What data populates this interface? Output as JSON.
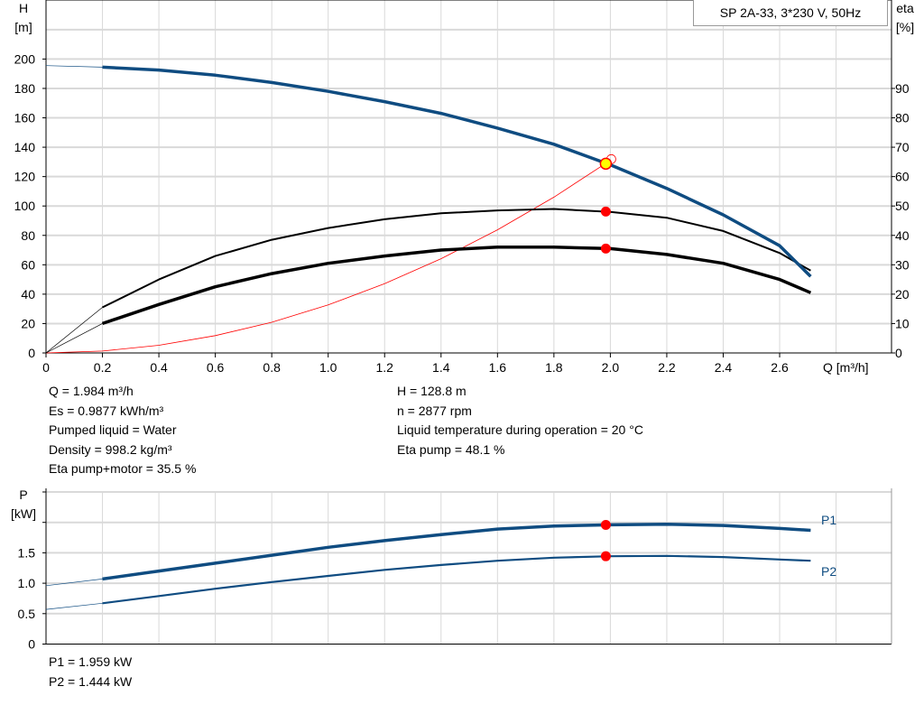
{
  "title": "SP 2A-33, 3*230 V, 50Hz",
  "colors": {
    "head": "#0f4c81",
    "eta": "#000000",
    "system": "#ff0000",
    "power": "#0f4c81",
    "duty_marker": "#ff0000",
    "duty_head_marker": "#ffff00",
    "grid": "#d9d9d9"
  },
  "duty_info": {
    "left": [
      "Q = 1.984 m³/h",
      "Es = 0.9877 kWh/m³",
      "Pumped liquid = Water",
      "Density = 998.2 kg/m³",
      "Eta pump+motor = 35.5 %"
    ],
    "right": [
      "H = 128.8 m",
      "n = 2877 rpm",
      "Liquid temperature during operation = 20 °C",
      "Eta pump = 48.1 %"
    ]
  },
  "power_info": [
    "P1 = 1.959 kW",
    "P2 = 1.444 kW"
  ],
  "chart_data": [
    {
      "type": "line",
      "xlabel": "Q [m³/h]",
      "ylabel": "H\n[m]",
      "y2label": "eta\n[%]",
      "xlim": [
        0,
        2.9
      ],
      "ylim": [
        0,
        240
      ],
      "y2lim": [
        0,
        120
      ],
      "xticks": [
        "0",
        "0.2",
        "0.4",
        "0.6",
        "0.8",
        "1.0",
        "1.2",
        "1.4",
        "1.6",
        "1.8",
        "2.0",
        "2.2",
        "2.4",
        "2.6"
      ],
      "yticks": [
        "0",
        "20",
        "40",
        "60",
        "80",
        "100",
        "120",
        "140",
        "160",
        "180",
        "200"
      ],
      "y2ticks": [
        "0",
        "10",
        "20",
        "30",
        "40",
        "50",
        "60",
        "70",
        "80",
        "90"
      ],
      "grid": true,
      "series": [
        {
          "id": "head",
          "axis": "left",
          "x": [
            0,
            0.2,
            0.4,
            0.6,
            0.8,
            1.0,
            1.2,
            1.4,
            1.6,
            1.8,
            2.0,
            2.2,
            2.4,
            2.6,
            2.71
          ],
          "values": [
            195.5,
            194.5,
            192.5,
            189,
            184,
            178,
            171,
            163,
            153,
            142,
            128,
            112,
            94,
            73,
            52
          ]
        },
        {
          "id": "eta-pump",
          "axis": "right",
          "x": [
            0,
            0.2,
            0.4,
            0.6,
            0.8,
            1.0,
            1.2,
            1.4,
            1.6,
            1.8,
            2.0,
            2.2,
            2.4,
            2.6,
            2.71
          ],
          "values": [
            0,
            15.5,
            25,
            33,
            38.5,
            42.5,
            45.5,
            47.5,
            48.5,
            49,
            48,
            46,
            41.5,
            34,
            28
          ]
        },
        {
          "id": "eta-pump-motor",
          "axis": "right",
          "x": [
            0,
            0.2,
            0.4,
            0.6,
            0.8,
            1.0,
            1.2,
            1.4,
            1.6,
            1.8,
            2.0,
            2.2,
            2.4,
            2.6,
            2.71
          ],
          "values": [
            0,
            10,
            16.5,
            22.5,
            27,
            30.5,
            33,
            35,
            36,
            36,
            35.5,
            33.5,
            30.5,
            25,
            20.5
          ]
        },
        {
          "id": "system",
          "axis": "left",
          "x": [
            0,
            0.2,
            0.4,
            0.6,
            0.8,
            1.0,
            1.2,
            1.4,
            1.6,
            1.8,
            2.0
          ],
          "values": [
            0,
            1.3,
            5.2,
            11.8,
            20.9,
            32.7,
            47.1,
            64.1,
            83.8,
            106,
            131
          ]
        }
      ],
      "duty_point": {
        "q": 1.984,
        "h": 128.8,
        "eta_pump": 48.1,
        "eta_pump_motor": 35.5
      }
    },
    {
      "type": "line",
      "ylabel": "P\n[kW]",
      "xlim": [
        0,
        2.9
      ],
      "ylim": [
        0,
        2.5
      ],
      "yticks": [
        "0",
        "0.5",
        "1.0",
        "1.5",
        "",
        ""
      ],
      "grid": true,
      "series": [
        {
          "id": "P1",
          "name": "P1",
          "x": [
            0,
            0.2,
            0.4,
            0.6,
            0.8,
            1.0,
            1.2,
            1.4,
            1.6,
            1.8,
            2.0,
            2.2,
            2.4,
            2.6,
            2.71
          ],
          "values": [
            0.96,
            1.07,
            1.2,
            1.33,
            1.46,
            1.59,
            1.7,
            1.8,
            1.89,
            1.94,
            1.96,
            1.97,
            1.95,
            1.9,
            1.87
          ]
        },
        {
          "id": "P2",
          "name": "P2",
          "x": [
            0,
            0.2,
            0.4,
            0.6,
            0.8,
            1.0,
            1.2,
            1.4,
            1.6,
            1.8,
            2.0,
            2.2,
            2.4,
            2.6,
            2.71
          ],
          "values": [
            0.57,
            0.67,
            0.79,
            0.91,
            1.02,
            1.12,
            1.22,
            1.3,
            1.37,
            1.42,
            1.444,
            1.45,
            1.43,
            1.39,
            1.37
          ]
        }
      ],
      "duty_point": {
        "q": 1.984,
        "p1": 1.959,
        "p2": 1.444
      }
    }
  ]
}
